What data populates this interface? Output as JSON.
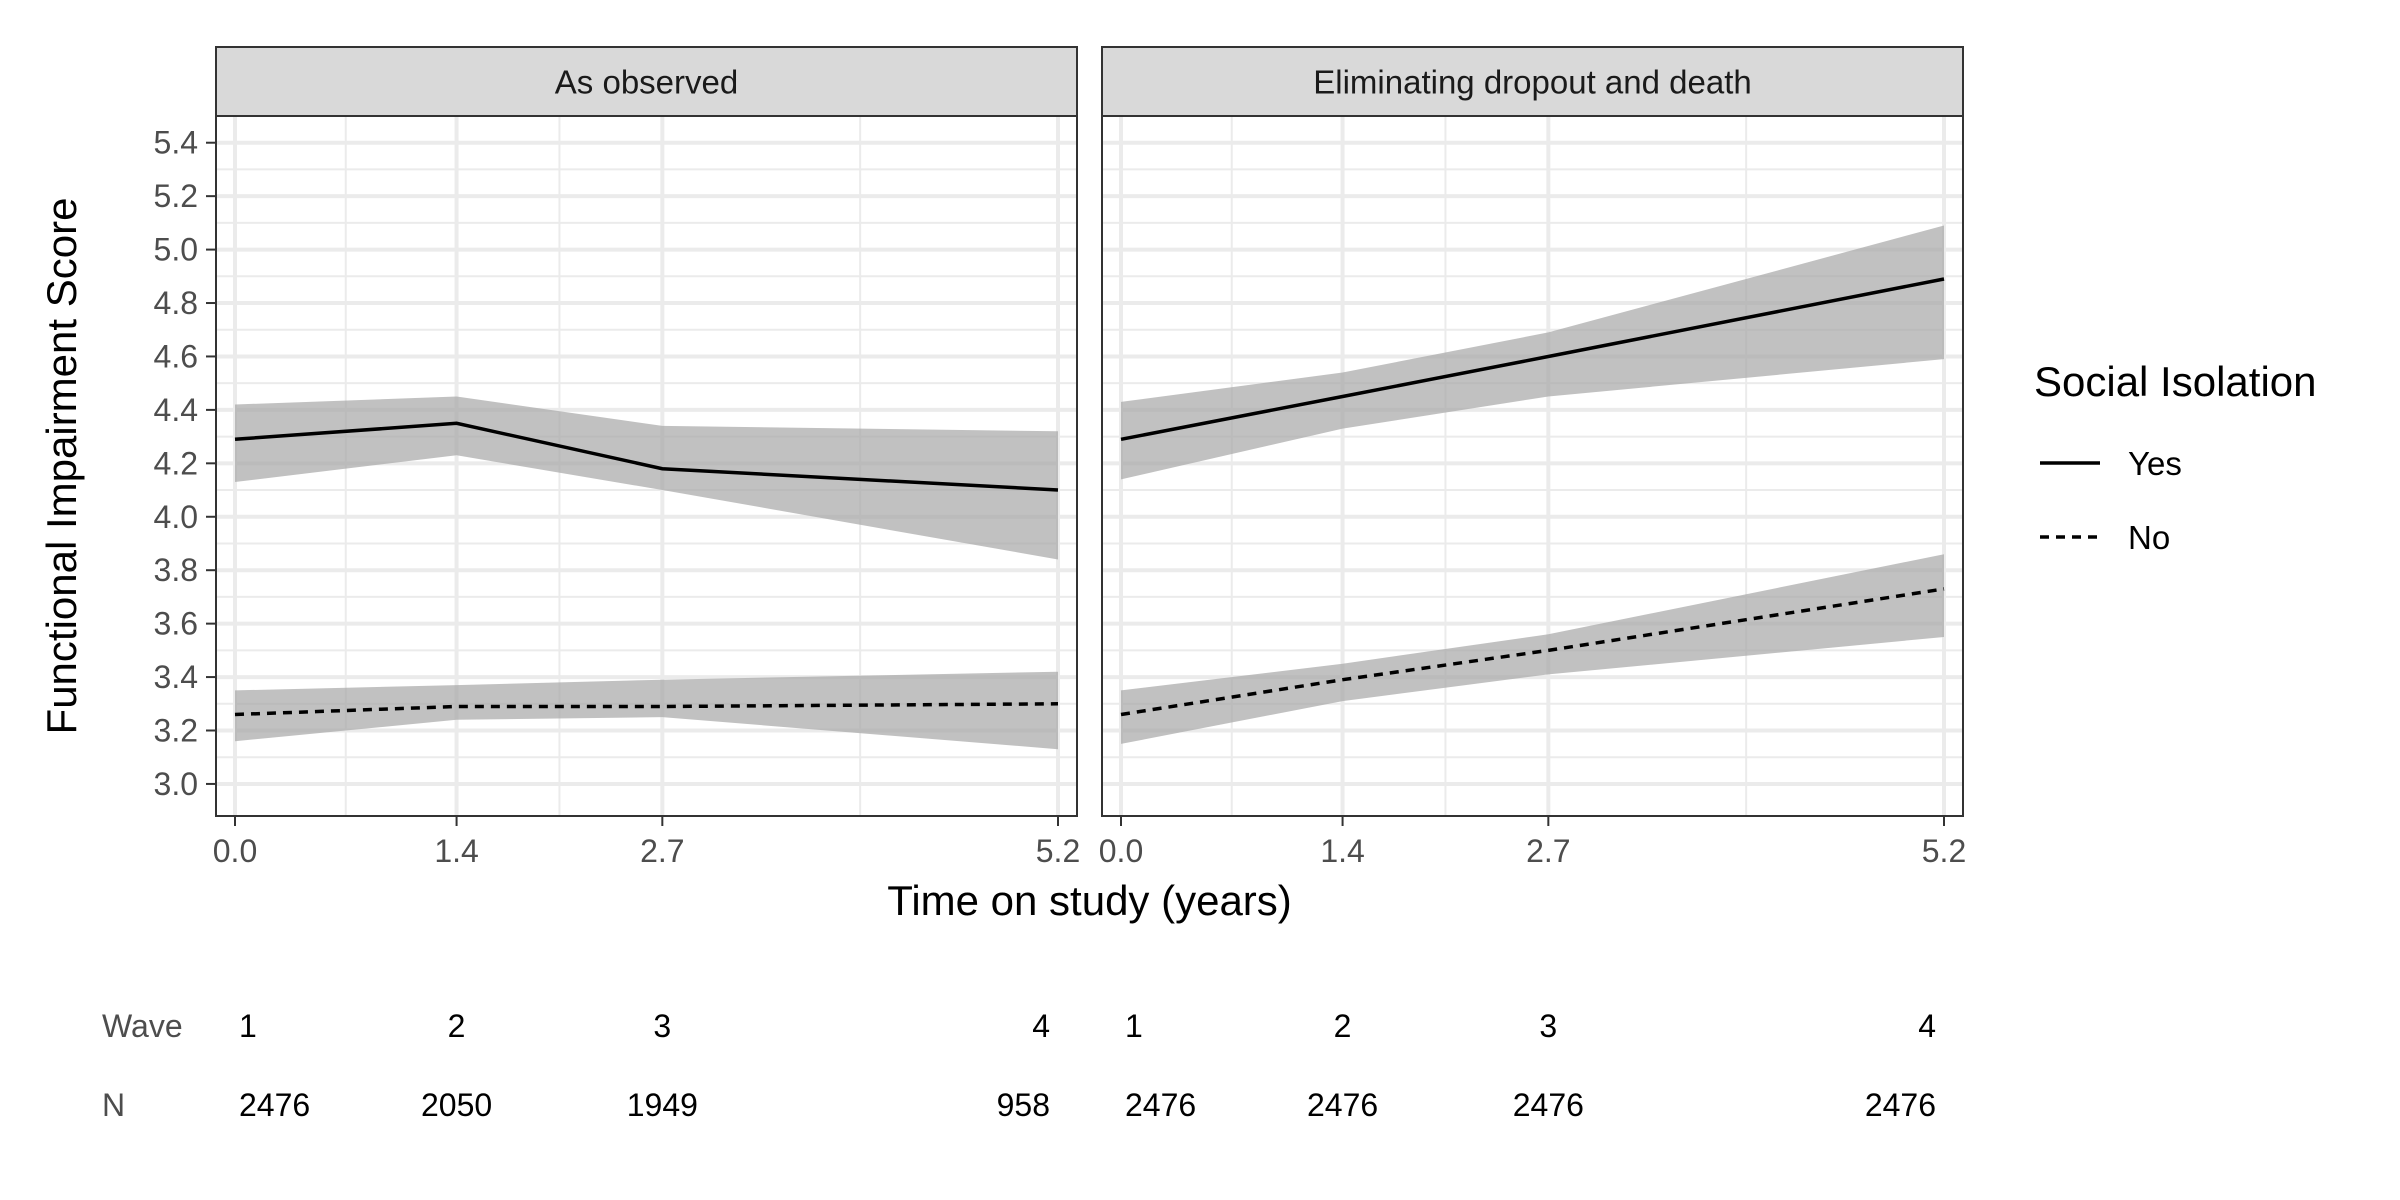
{
  "chart_data": {
    "type": "line",
    "ylabel": "Functional Impairment Score",
    "xlabel": "Time on study (years)",
    "x_ticks": [
      "0.0",
      "1.4",
      "2.7",
      "5.2"
    ],
    "y_ticks": [
      "3.0",
      "3.2",
      "3.4",
      "3.6",
      "3.8",
      "4.0",
      "4.2",
      "4.4",
      "4.6",
      "4.8",
      "5.0",
      "5.2",
      "5.4"
    ],
    "xlim": [
      -0.12,
      5.32
    ],
    "ylim": [
      2.88,
      5.5
    ],
    "x": [
      0.0,
      1.4,
      2.7,
      5.2
    ],
    "grid": true,
    "band_color": "#a6a6a6",
    "line_color": "#000000",
    "legend": {
      "title": "Social Isolation",
      "placement": "right",
      "entries": [
        {
          "label": "Yes",
          "style": "solid"
        },
        {
          "label": "No",
          "style": "dashed"
        }
      ]
    },
    "panels": [
      {
        "title": "As observed",
        "series": [
          {
            "name": "Yes",
            "style": "solid",
            "values": [
              4.29,
              4.35,
              4.18,
              4.1
            ],
            "lower": [
              4.13,
              4.23,
              4.1,
              3.84
            ],
            "upper": [
              4.42,
              4.45,
              4.34,
              4.32
            ]
          },
          {
            "name": "No",
            "style": "dashed",
            "values": [
              3.26,
              3.29,
              3.29,
              3.3
            ],
            "lower": [
              3.16,
              3.24,
              3.25,
              3.13
            ],
            "upper": [
              3.35,
              3.37,
              3.39,
              3.42
            ]
          }
        ],
        "table": {
          "wave": [
            "1",
            "2",
            "3",
            "4"
          ],
          "n": [
            "2476",
            "2050",
            "1949",
            "958"
          ]
        }
      },
      {
        "title": "Eliminating dropout and death",
        "series": [
          {
            "name": "Yes",
            "style": "solid",
            "values": [
              4.29,
              4.45,
              4.6,
              4.89
            ],
            "lower": [
              4.14,
              4.33,
              4.45,
              4.59
            ],
            "upper": [
              4.43,
              4.54,
              4.69,
              5.09
            ]
          },
          {
            "name": "No",
            "style": "dashed",
            "values": [
              3.26,
              3.39,
              3.5,
              3.73
            ],
            "lower": [
              3.15,
              3.31,
              3.41,
              3.55
            ],
            "upper": [
              3.35,
              3.45,
              3.56,
              3.86
            ]
          }
        ],
        "table": {
          "wave": [
            "1",
            "2",
            "3",
            "4"
          ],
          "n": [
            "2476",
            "2476",
            "2476",
            "2476"
          ]
        }
      }
    ],
    "table_row_labels": {
      "wave": "Wave",
      "n": "N"
    }
  }
}
